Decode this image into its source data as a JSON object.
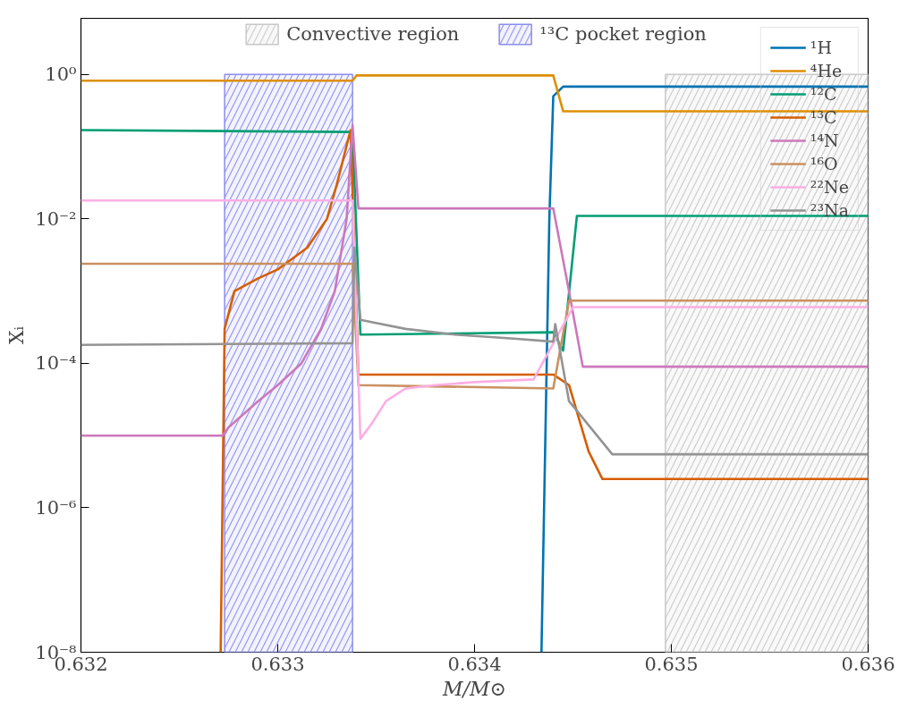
{
  "chart_data": {
    "type": "line",
    "xlabel": "M/M⊙",
    "ylabel": "Xᵢ",
    "log": "y",
    "grid": false,
    "legend": "top right",
    "xlim": [
      0.632,
      0.636
    ],
    "ylim": [
      1e-08,
      6
    ],
    "xticks": [
      0.632,
      0.633,
      0.634,
      0.635,
      0.636
    ],
    "yticks": [
      {
        "value": 1e-08,
        "label": "10⁻⁸"
      },
      {
        "value": 1e-06,
        "label": "10⁻⁶"
      },
      {
        "value": 0.0001,
        "label": "10⁻⁴"
      },
      {
        "value": 0.01,
        "label": "10⁻²"
      },
      {
        "value": 1,
        "label": "10⁰"
      }
    ],
    "bands": [
      {
        "axis": "x",
        "from": 0.63497,
        "to": 0.636,
        "label": "Convective region",
        "color": "#c8c8c8"
      },
      {
        "axis": "x",
        "from": 0.63273,
        "to": 0.63338,
        "label": "¹³C pocket region",
        "color": "#8c8cf0"
      }
    ],
    "series": [
      {
        "name": "¹H",
        "color": "#0173b2",
        "x": [
          0.63434,
          0.63436,
          0.63438,
          0.6344,
          0.63445,
          0.636
        ],
        "values": [
          1e-08,
          1e-05,
          0.01,
          0.5,
          0.68,
          0.68
        ]
      },
      {
        "name": "⁴He",
        "color": "#de8f05",
        "x": [
          0.632,
          0.63338,
          0.6334,
          0.6344,
          0.63445,
          0.636
        ],
        "values": [
          0.82,
          0.82,
          0.97,
          0.97,
          0.31,
          0.31
        ]
      },
      {
        "name": "¹²C",
        "color": "#029e73",
        "x": [
          0.632,
          0.63338,
          0.63342,
          0.6344,
          0.63445,
          0.63452,
          0.636
        ],
        "values": [
          0.17,
          0.16,
          0.00025,
          0.00027,
          0.00015,
          0.011,
          0.011
        ]
      },
      {
        "name": "¹³C",
        "color": "#d55e00",
        "x": [
          0.63271,
          0.63273,
          0.63278,
          0.6329,
          0.633,
          0.63315,
          0.63325,
          0.6333,
          0.63337,
          0.63341,
          0.6344,
          0.63448,
          0.63458,
          0.63465,
          0.636
        ],
        "values": [
          1e-08,
          0.0003,
          0.001,
          0.0015,
          0.002,
          0.004,
          0.01,
          0.03,
          0.17,
          7e-05,
          7e-05,
          5e-05,
          6e-06,
          2.5e-06,
          2.5e-06
        ]
      },
      {
        "name": "¹⁴N",
        "color": "#cc78bc",
        "x": [
          0.632,
          0.63272,
          0.63275,
          0.6329,
          0.633,
          0.63312,
          0.63322,
          0.63329,
          0.63335,
          0.63338,
          0.63341,
          0.6344,
          0.63448,
          0.63455,
          0.636
        ],
        "values": [
          1e-05,
          1e-05,
          1.3e-05,
          3e-05,
          5e-05,
          0.0001,
          0.0003,
          0.001,
          0.01,
          0.2,
          0.014,
          0.014,
          0.001,
          9e-05,
          9e-05
        ]
      },
      {
        "name": "¹⁶O",
        "color": "#ca9161",
        "x": [
          0.632,
          0.63338,
          0.63341,
          0.6344,
          0.63448,
          0.636
        ],
        "values": [
          0.0024,
          0.0024,
          5e-05,
          4.5e-05,
          0.00074,
          0.00074
        ]
      },
      {
        "name": "²²Ne",
        "color": "#fbafe4",
        "x": [
          0.632,
          0.63338,
          0.63342,
          0.63348,
          0.63355,
          0.63365,
          0.6338,
          0.634,
          0.6343,
          0.6345,
          0.636
        ],
        "values": [
          0.018,
          0.018,
          9e-06,
          1.5e-05,
          3e-05,
          4.5e-05,
          5e-05,
          5.5e-05,
          6e-05,
          0.0006,
          0.0006
        ]
      },
      {
        "name": "²³Na",
        "color": "#949494",
        "x": [
          0.632,
          0.63338,
          0.63339,
          0.63342,
          0.63365,
          0.6339,
          0.6342,
          0.6344,
          0.63441,
          0.63448,
          0.6347,
          0.636
        ],
        "values": [
          0.00018,
          0.00019,
          0.004,
          0.0004,
          0.0003,
          0.00025,
          0.00022,
          0.0002,
          0.00035,
          3e-05,
          5.5e-06,
          5.5e-06
        ]
      }
    ]
  }
}
